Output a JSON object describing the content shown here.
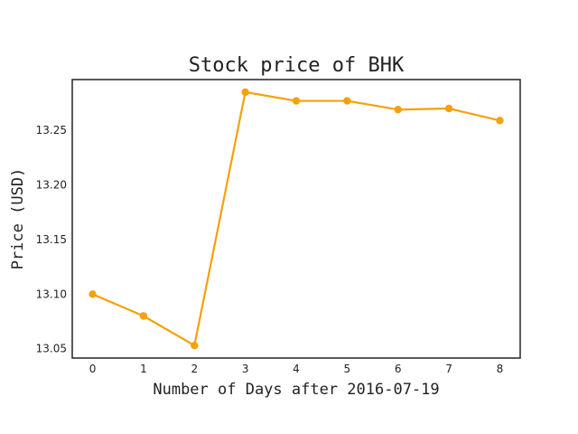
{
  "chart_data": {
    "type": "line",
    "title": "Stock price of BHK",
    "xlabel": "Number of Days after 2016-07-19",
    "ylabel": "Price (USD)",
    "x": [
      0,
      1,
      2,
      3,
      4,
      5,
      6,
      7,
      8
    ],
    "y": [
      13.1,
      13.08,
      13.053,
      13.285,
      13.277,
      13.277,
      13.269,
      13.27,
      13.259
    ],
    "xticks": [
      "0",
      "1",
      "2",
      "3",
      "4",
      "5",
      "6",
      "7",
      "8"
    ],
    "yticks": [
      "13.05",
      "13.10",
      "13.15",
      "13.20",
      "13.25"
    ],
    "xlim": [
      -0.4,
      8.4
    ],
    "ylim": [
      13.0415,
      13.2965
    ],
    "grid": false,
    "line_color": "#f5a10a",
    "marker": "circle"
  }
}
